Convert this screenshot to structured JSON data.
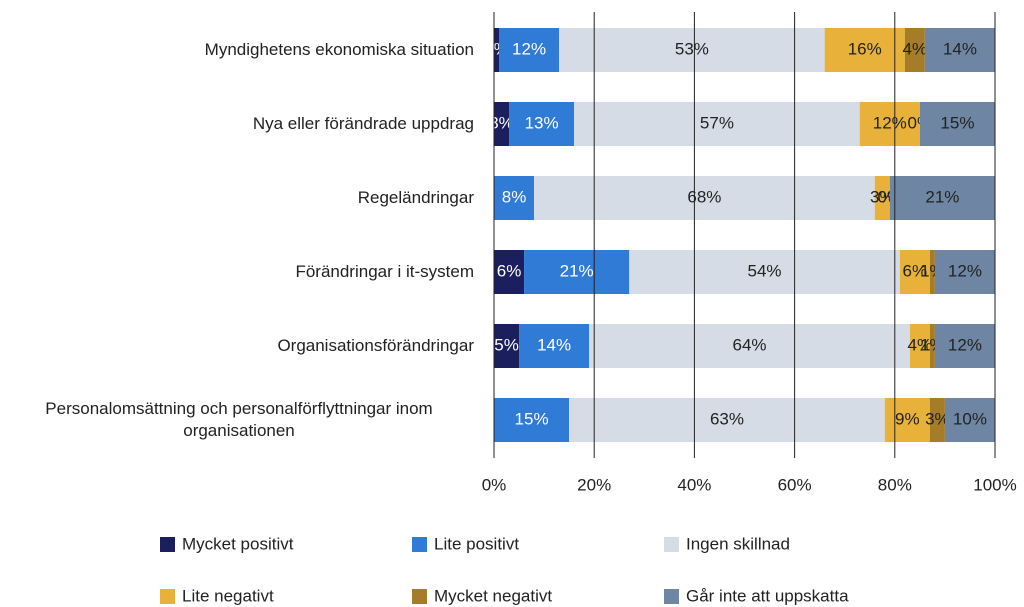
{
  "chart_data": {
    "type": "stacked_barh",
    "categories": [
      "Myndighetens ekonomiska situation",
      "Nya eller förändrade uppdrag",
      "Regeländringar",
      "Förändringar i it-system",
      "Organisationsförändringar",
      "Personalomsättning och personalförflyttningar inom organisationen"
    ],
    "series": [
      {
        "name": "Mycket positivt",
        "color": "#1c1f5e",
        "values": [
          1,
          3,
          0,
          6,
          5,
          0
        ],
        "value_labels": [
          "1%",
          "3%",
          "0%",
          "6%",
          "5%",
          "0%"
        ]
      },
      {
        "name": "Lite positivt",
        "color": "#2f7bd6",
        "values": [
          12,
          13,
          8,
          21,
          14,
          15
        ],
        "value_labels": [
          "12%",
          "13%",
          "8%",
          "21%",
          "14%",
          "15%"
        ]
      },
      {
        "name": "Ingen skillnad",
        "color": "#d6dce6",
        "values": [
          53,
          57,
          68,
          54,
          64,
          63
        ],
        "value_labels": [
          "53%",
          "57%",
          "68%",
          "54%",
          "64%",
          "63%"
        ]
      },
      {
        "name": "Lite negativt",
        "color": "#e8b23a",
        "values": [
          16,
          12,
          3,
          6,
          4,
          9
        ],
        "value_labels": [
          "16%",
          "12%",
          "3%",
          "6%",
          "4%",
          "9%"
        ]
      },
      {
        "name": "Mycket negativt",
        "color": "#a57c28",
        "values": [
          4,
          0,
          0,
          1,
          1,
          3
        ],
        "value_labels": [
          "4%",
          "0%",
          "0%",
          "1%",
          "1%",
          "3%"
        ]
      },
      {
        "name": "Går inte att uppskatta",
        "color": "#6e86a3",
        "values": [
          14,
          15,
          21,
          12,
          12,
          10
        ],
        "value_labels": [
          "14%",
          "15%",
          "21%",
          "12%",
          "12%",
          "10%"
        ]
      }
    ],
    "xlim": [
      0,
      100
    ],
    "xticks": [
      {
        "value": 0,
        "label": "0%"
      },
      {
        "value": 20,
        "label": "20%"
      },
      {
        "value": 40,
        "label": "40%"
      },
      {
        "value": 60,
        "label": "60%"
      },
      {
        "value": 80,
        "label": "80%"
      },
      {
        "value": 100,
        "label": "100%"
      }
    ],
    "grid": true,
    "legend": "bottom"
  }
}
